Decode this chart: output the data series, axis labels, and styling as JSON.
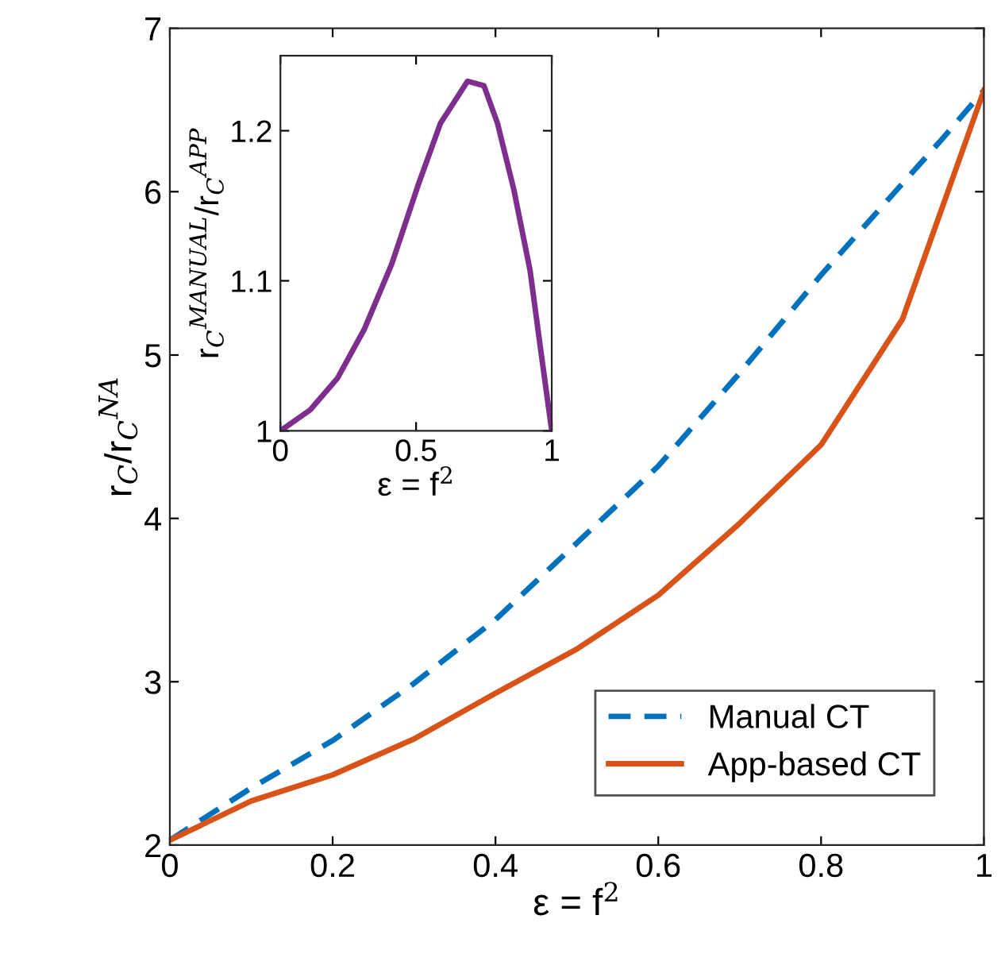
{
  "chart_data": [
    {
      "type": "line",
      "xlabel": "ε = f$^{2}$",
      "ylabel": "r$_{C}$/r$_{C}$$^{NA}$",
      "xlim": [
        0,
        1
      ],
      "ylim": [
        2,
        7
      ],
      "xticks": [
        0,
        0.2,
        0.4,
        0.6,
        0.8,
        1
      ],
      "yticks": [
        2,
        3,
        4,
        5,
        6,
        7
      ],
      "grid": false,
      "legend": "bottom right",
      "series": [
        {
          "name": "Manual CT",
          "color": "#0072bd",
          "line_style": "dashed",
          "x": [
            0,
            0.1,
            0.2,
            0.3,
            0.4,
            0.5,
            0.6,
            0.7,
            0.8,
            0.9,
            0.95,
            1
          ],
          "values": [
            2.03,
            2.35,
            2.64,
            2.99,
            3.38,
            3.85,
            4.32,
            4.89,
            5.49,
            6.05,
            6.33,
            6.62
          ]
        },
        {
          "name": "App-based CT",
          "color": "#d95319",
          "line_style": "solid",
          "x": [
            0,
            0.1,
            0.2,
            0.3,
            0.4,
            0.5,
            0.6,
            0.7,
            0.8,
            0.9,
            0.95,
            1
          ],
          "values": [
            2.03,
            2.27,
            2.43,
            2.65,
            2.93,
            3.2,
            3.53,
            3.97,
            4.45,
            5.22,
            5.92,
            6.62
          ]
        }
      ]
    },
    {
      "type": "line",
      "xlabel": "ε = f$^{2}$",
      "ylabel": "r$_{C}$$^{MANUAL}$/r$_{C}$$^{APP}$",
      "xlim": [
        0,
        1
      ],
      "ylim": [
        1,
        1.25
      ],
      "xticks": [
        0,
        0.5,
        1
      ],
      "yticks": [
        1,
        1.1,
        1.2
      ],
      "grid": false,
      "series": [
        {
          "color": "#7e2f8e",
          "line_style": "solid",
          "x": [
            0,
            0.11,
            0.21,
            0.31,
            0.41,
            0.51,
            0.59,
            0.69,
            0.75,
            0.8,
            0.86,
            0.92,
            0.96,
            1
          ],
          "values": [
            1.0,
            1.014,
            1.035,
            1.068,
            1.111,
            1.165,
            1.205,
            1.233,
            1.23,
            1.205,
            1.161,
            1.107,
            1.053,
            1.0
          ]
        }
      ]
    }
  ]
}
